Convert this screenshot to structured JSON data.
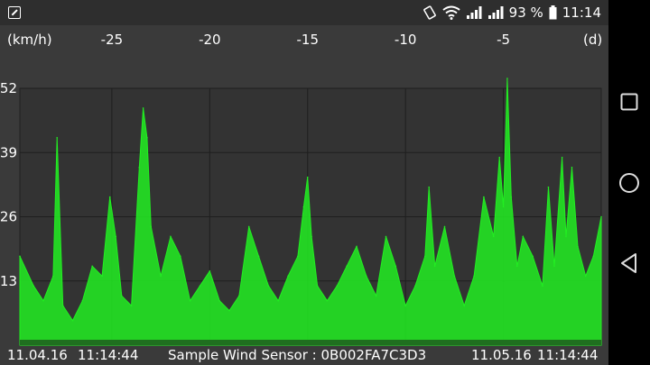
{
  "status_bar": {
    "battery": "93 %",
    "time": "11:14"
  },
  "chart_data": {
    "type": "area",
    "xlabel": "(d)",
    "ylabel": "(km/h)",
    "x_ticks": [
      -25,
      -20,
      -15,
      -10,
      -5
    ],
    "y_ticks": [
      13,
      26,
      39,
      52
    ],
    "xlim": [
      -29.7,
      0
    ],
    "ylim": [
      0,
      52
    ],
    "grid": true,
    "series_color": "#22ee22",
    "series": [
      {
        "values": [
          {
            "x": -29.7,
            "y": 18
          },
          {
            "x": -29,
            "y": 12
          },
          {
            "x": -28.5,
            "y": 9
          },
          {
            "x": -28,
            "y": 14
          },
          {
            "x": -27.8,
            "y": 42
          },
          {
            "x": -27.5,
            "y": 8
          },
          {
            "x": -27,
            "y": 5
          },
          {
            "x": -26.5,
            "y": 9
          },
          {
            "x": -26,
            "y": 16
          },
          {
            "x": -25.5,
            "y": 14
          },
          {
            "x": -25.1,
            "y": 30
          },
          {
            "x": -24.8,
            "y": 22
          },
          {
            "x": -24.5,
            "y": 10
          },
          {
            "x": -24,
            "y": 8
          },
          {
            "x": -23.6,
            "y": 36
          },
          {
            "x": -23.4,
            "y": 48
          },
          {
            "x": -23.2,
            "y": 42
          },
          {
            "x": -23,
            "y": 24
          },
          {
            "x": -22.5,
            "y": 14
          },
          {
            "x": -22,
            "y": 22
          },
          {
            "x": -21.5,
            "y": 18
          },
          {
            "x": -21,
            "y": 9
          },
          {
            "x": -20.5,
            "y": 12
          },
          {
            "x": -20,
            "y": 15
          },
          {
            "x": -19.5,
            "y": 9
          },
          {
            "x": -19,
            "y": 7
          },
          {
            "x": -18.5,
            "y": 10
          },
          {
            "x": -18,
            "y": 24
          },
          {
            "x": -17.5,
            "y": 18
          },
          {
            "x": -17,
            "y": 12
          },
          {
            "x": -16.5,
            "y": 9
          },
          {
            "x": -16,
            "y": 14
          },
          {
            "x": -15.5,
            "y": 18
          },
          {
            "x": -15.2,
            "y": 28
          },
          {
            "x": -15,
            "y": 34
          },
          {
            "x": -14.8,
            "y": 22
          },
          {
            "x": -14.5,
            "y": 12
          },
          {
            "x": -14,
            "y": 9
          },
          {
            "x": -13.5,
            "y": 12
          },
          {
            "x": -13,
            "y": 16
          },
          {
            "x": -12.5,
            "y": 20
          },
          {
            "x": -12,
            "y": 14
          },
          {
            "x": -11.5,
            "y": 10
          },
          {
            "x": -11,
            "y": 22
          },
          {
            "x": -10.5,
            "y": 16
          },
          {
            "x": -10,
            "y": 8
          },
          {
            "x": -9.5,
            "y": 12
          },
          {
            "x": -9,
            "y": 18
          },
          {
            "x": -8.8,
            "y": 32
          },
          {
            "x": -8.5,
            "y": 16
          },
          {
            "x": -8,
            "y": 24
          },
          {
            "x": -7.5,
            "y": 14
          },
          {
            "x": -7,
            "y": 8
          },
          {
            "x": -6.5,
            "y": 14
          },
          {
            "x": -6,
            "y": 30
          },
          {
            "x": -5.5,
            "y": 22
          },
          {
            "x": -5.2,
            "y": 38
          },
          {
            "x": -5,
            "y": 28
          },
          {
            "x": -4.8,
            "y": 54
          },
          {
            "x": -4.6,
            "y": 30
          },
          {
            "x": -4.3,
            "y": 16
          },
          {
            "x": -4,
            "y": 22
          },
          {
            "x": -3.5,
            "y": 18
          },
          {
            "x": -3,
            "y": 12
          },
          {
            "x": -2.7,
            "y": 32
          },
          {
            "x": -2.4,
            "y": 16
          },
          {
            "x": -2,
            "y": 38
          },
          {
            "x": -1.8,
            "y": 22
          },
          {
            "x": -1.5,
            "y": 36
          },
          {
            "x": -1.2,
            "y": 20
          },
          {
            "x": -0.8,
            "y": 14
          },
          {
            "x": -0.4,
            "y": 18
          },
          {
            "x": 0,
            "y": 26
          }
        ]
      }
    ]
  },
  "footer": {
    "start_date": "11.04.16",
    "start_time": "11:14:44",
    "sensor_label": "Sample Wind Sensor : 0B002FA7C3D3",
    "end_date": "11.05.16",
    "end_time": "11:14:44"
  },
  "nav_icons": [
    "overflow-menu-icon",
    "recents-square-icon",
    "home-circle-icon",
    "back-triangle-icon"
  ]
}
